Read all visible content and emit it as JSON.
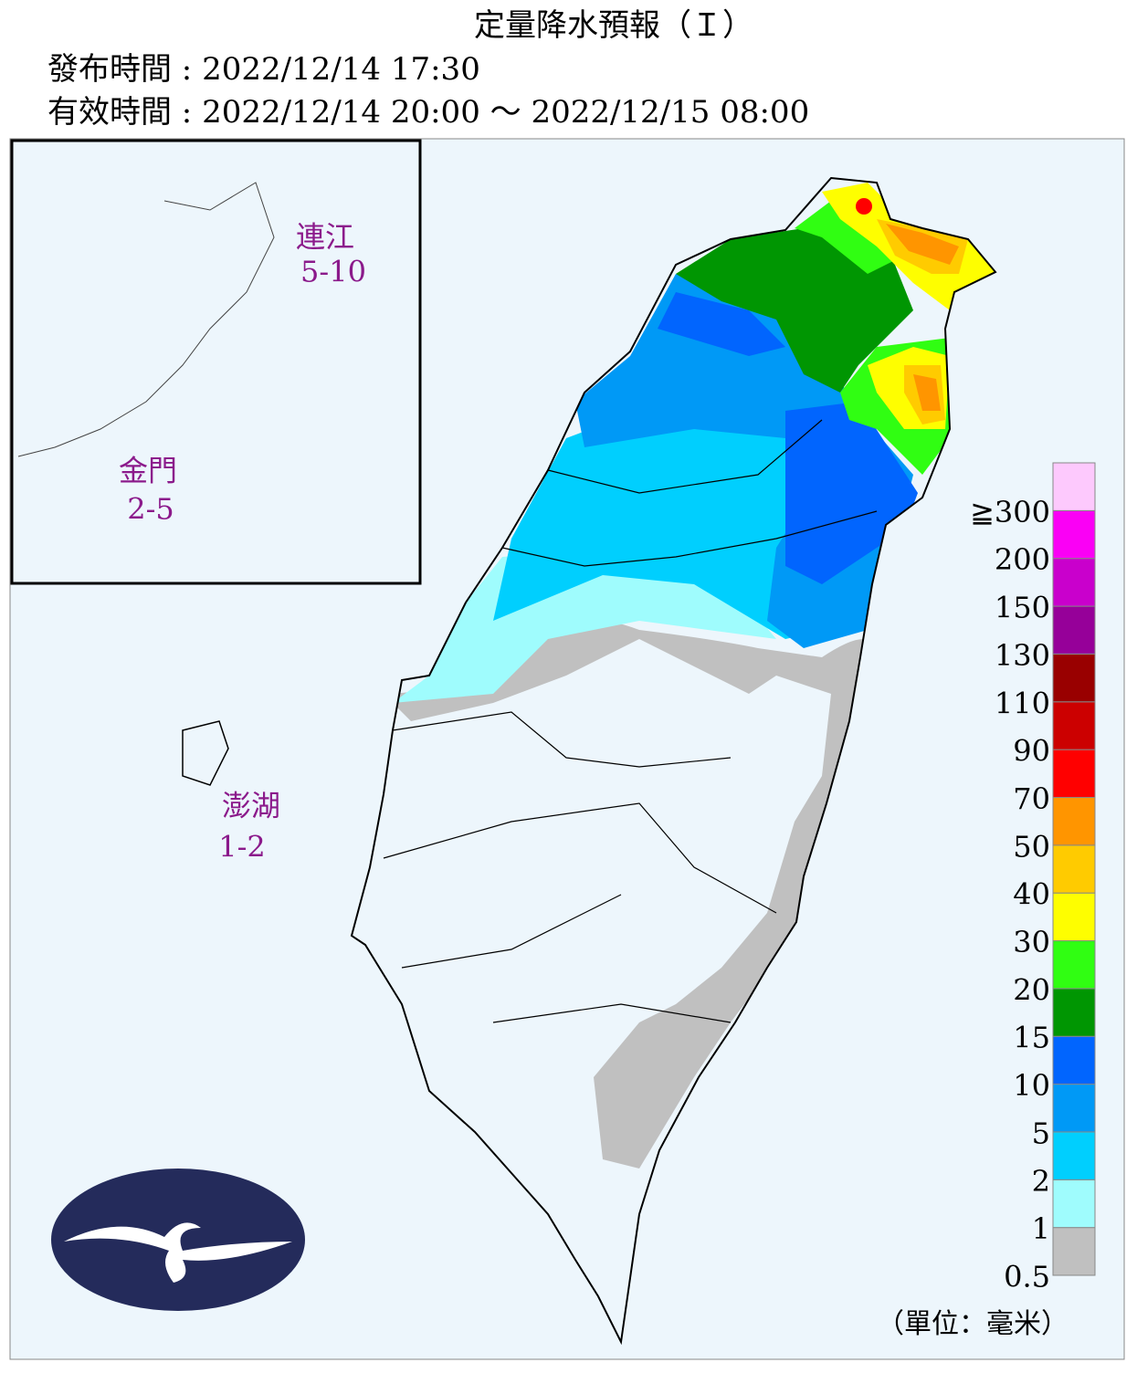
{
  "header": {
    "title": "定量降水預報（Ｉ）",
    "issued": "發布時間 : 2022/12/14 17:30",
    "valid": "有效時間 : 2022/12/14 20:00 ～ 2022/12/15 08:00"
  },
  "islands": [
    {
      "name": "連江",
      "range": "5-10"
    },
    {
      "name": "金門",
      "range": "2-5"
    },
    {
      "name": "澎湖",
      "range": "1-2"
    }
  ],
  "legend": {
    "items": [
      {
        "color": "#c0c0c0",
        "label": "0.5"
      },
      {
        "color": "#9ffcfd",
        "label": "1"
      },
      {
        "color": "#00cffe",
        "label": "2"
      },
      {
        "color": "#0099f6",
        "label": "5"
      },
      {
        "color": "#0165fe",
        "label": "10"
      },
      {
        "color": "#009602",
        "label": "15"
      },
      {
        "color": "#30fe12",
        "label": "20"
      },
      {
        "color": "#fefe00",
        "label": "30"
      },
      {
        "color": "#ffcb00",
        "label": "40"
      },
      {
        "color": "#ff9500",
        "label": "50"
      },
      {
        "color": "#ff0000",
        "label": "70"
      },
      {
        "color": "#cc0000",
        "label": "90"
      },
      {
        "color": "#990000",
        "label": "110"
      },
      {
        "color": "#960099",
        "label": "130"
      },
      {
        "color": "#c900cc",
        "label": "150"
      },
      {
        "color": "#fa00f5",
        "label": "200"
      },
      {
        "color": "#fdc9fd",
        "label": "≧300"
      }
    ],
    "unit": "（單位：毫米）"
  }
}
